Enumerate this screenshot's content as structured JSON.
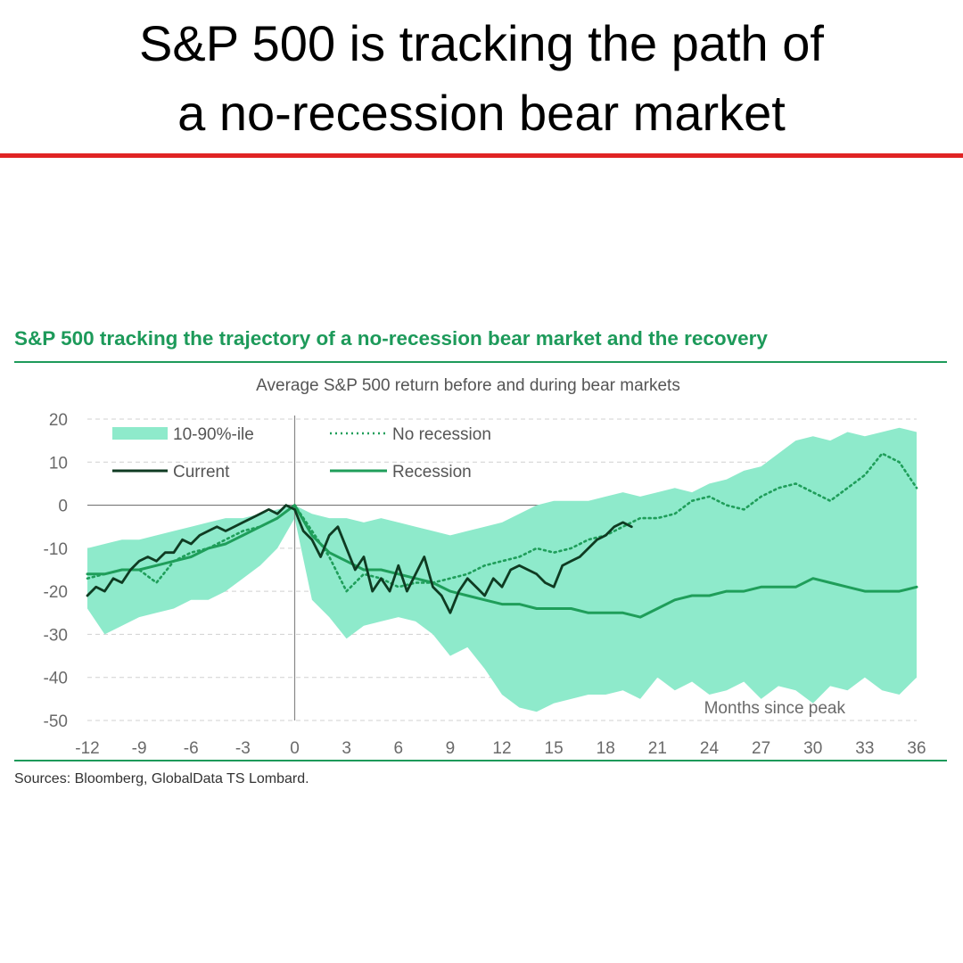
{
  "headline": {
    "line1": "S&P 500 is tracking the path of",
    "line2": "a no-recession bear market"
  },
  "colors": {
    "accent_red": "#e02424",
    "title_green": "#1d9a5a",
    "band": "#8eeacb",
    "current": "#0f3b22",
    "recession": "#1f9e5a",
    "no_recession": "#1f9e5a",
    "gridline": "#d0d0d0"
  },
  "chart_data": {
    "type": "line",
    "title": "S&P 500 tracking the trajectory of a no-recession bear market and the recovery",
    "subtitle": "Average S&P 500 return before and during bear markets",
    "xlabel": "Months since peak",
    "ylabel": "",
    "xlim": [
      -12,
      36
    ],
    "ylim": [
      -50,
      20
    ],
    "xticks": [
      -12,
      -9,
      -6,
      -3,
      0,
      3,
      6,
      9,
      12,
      15,
      18,
      21,
      24,
      27,
      30,
      33,
      36
    ],
    "yticks": [
      20,
      10,
      0,
      -10,
      -20,
      -30,
      -40,
      -50
    ],
    "grid": "horizontal dashed",
    "legend_position": "top-left",
    "legend": {
      "band": "10-90%-ile",
      "no_recession": "No recession",
      "current": "Current",
      "recession": "Recession"
    },
    "band": {
      "name": "10-90%-ile",
      "x": [
        -12,
        -11,
        -10,
        -9,
        -8,
        -7,
        -6,
        -5,
        -4,
        -3,
        -2,
        -1,
        0,
        1,
        2,
        3,
        4,
        5,
        6,
        7,
        8,
        9,
        10,
        11,
        12,
        13,
        14,
        15,
        16,
        17,
        18,
        19,
        20,
        21,
        22,
        23,
        24,
        25,
        26,
        27,
        28,
        29,
        30,
        31,
        32,
        33,
        34,
        35,
        36
      ],
      "upper": [
        -10,
        -9,
        -8,
        -8,
        -7,
        -6,
        -5,
        -4,
        -3,
        -3,
        -2,
        -1,
        0,
        -2,
        -3,
        -3,
        -4,
        -3,
        -4,
        -5,
        -6,
        -7,
        -6,
        -5,
        -4,
        -2,
        0,
        1,
        1,
        1,
        2,
        3,
        2,
        3,
        4,
        3,
        5,
        6,
        8,
        9,
        12,
        15,
        16,
        15,
        17,
        16,
        17,
        18,
        17
      ],
      "lower": [
        -24,
        -30,
        -28,
        -26,
        -25,
        -24,
        -22,
        -22,
        -20,
        -17,
        -14,
        -10,
        -3,
        -22,
        -26,
        -31,
        -28,
        -27,
        -26,
        -27,
        -30,
        -35,
        -33,
        -38,
        -44,
        -47,
        -48,
        -46,
        -45,
        -44,
        -44,
        -43,
        -45,
        -40,
        -43,
        -41,
        -44,
        -43,
        -41,
        -45,
        -42,
        -43,
        -46,
        -42,
        -43,
        -40,
        -43,
        -44,
        -40
      ]
    },
    "series": [
      {
        "name": "No recession",
        "style": "dotted",
        "x": [
          -12,
          -11,
          -10,
          -9,
          -8,
          -7,
          -6,
          -5,
          -4,
          -3,
          -2,
          -1,
          0,
          1,
          2,
          3,
          4,
          5,
          6,
          7,
          8,
          9,
          10,
          11,
          12,
          13,
          14,
          15,
          16,
          17,
          18,
          19,
          20,
          21,
          22,
          23,
          24,
          25,
          26,
          27,
          28,
          29,
          30,
          31,
          32,
          33,
          34,
          35,
          36
        ],
        "y": [
          -17,
          -16,
          -15,
          -15,
          -18,
          -13,
          -11,
          -10,
          -8,
          -6,
          -5,
          -3,
          0,
          -6,
          -12,
          -20,
          -16,
          -17,
          -19,
          -18,
          -18,
          -17,
          -16,
          -14,
          -13,
          -12,
          -10,
          -11,
          -10,
          -8,
          -7,
          -5,
          -3,
          -3,
          -2,
          1,
          2,
          0,
          -1,
          2,
          4,
          5,
          3,
          1,
          4,
          7,
          12,
          10,
          4
        ]
      },
      {
        "name": "Recession",
        "style": "solid",
        "x": [
          -12,
          -11,
          -10,
          -9,
          -8,
          -7,
          -6,
          -5,
          -4,
          -3,
          -2,
          -1,
          0,
          1,
          2,
          3,
          4,
          5,
          6,
          7,
          8,
          9,
          10,
          11,
          12,
          13,
          14,
          15,
          16,
          17,
          18,
          19,
          20,
          21,
          22,
          23,
          24,
          25,
          26,
          27,
          28,
          29,
          30,
          31,
          32,
          33,
          34,
          35,
          36
        ],
        "y": [
          -16,
          -16,
          -15,
          -15,
          -14,
          -13,
          -12,
          -10,
          -9,
          -7,
          -5,
          -3,
          0,
          -7,
          -11,
          -13,
          -15,
          -15,
          -16,
          -17,
          -18,
          -20,
          -21,
          -22,
          -23,
          -23,
          -24,
          -24,
          -24,
          -25,
          -25,
          -25,
          -26,
          -24,
          -22,
          -21,
          -21,
          -20,
          -20,
          -19,
          -19,
          -19,
          -17,
          -18,
          -19,
          -20,
          -20,
          -20,
          -19
        ]
      },
      {
        "name": "Current",
        "style": "solid-dark",
        "x": [
          -12,
          -11.5,
          -11,
          -10.5,
          -10,
          -9.5,
          -9,
          -8.5,
          -8,
          -7.5,
          -7,
          -6.5,
          -6,
          -5.5,
          -5,
          -4.5,
          -4,
          -3.5,
          -3,
          -2.5,
          -2,
          -1.5,
          -1,
          -0.5,
          0,
          0.5,
          1,
          1.5,
          2,
          2.5,
          3,
          3.5,
          4,
          4.5,
          5,
          5.5,
          6,
          6.5,
          7,
          7.5,
          8,
          8.5,
          9,
          9.5,
          10,
          10.5,
          11,
          11.5,
          12,
          12.5,
          13,
          13.5,
          14,
          14.5,
          15,
          15.5,
          16,
          16.5,
          17,
          17.5,
          18,
          18.5,
          19,
          19.5
        ],
        "y": [
          -21,
          -19,
          -20,
          -17,
          -18,
          -15,
          -13,
          -12,
          -13,
          -11,
          -11,
          -8,
          -9,
          -7,
          -6,
          -5,
          -6,
          -5,
          -4,
          -3,
          -2,
          -1,
          -2,
          0,
          -1,
          -6,
          -8,
          -12,
          -7,
          -5,
          -10,
          -15,
          -12,
          -20,
          -17,
          -20,
          -14,
          -20,
          -16,
          -12,
          -19,
          -21,
          -25,
          -20,
          -17,
          -19,
          -21,
          -17,
          -19,
          -15,
          -14,
          -15,
          -16,
          -18,
          -19,
          -14,
          -13,
          -12,
          -10,
          -8,
          -7,
          -5,
          -4,
          -5
        ]
      }
    ],
    "source": "Sources: Bloomberg, GlobalData TS Lombard."
  }
}
